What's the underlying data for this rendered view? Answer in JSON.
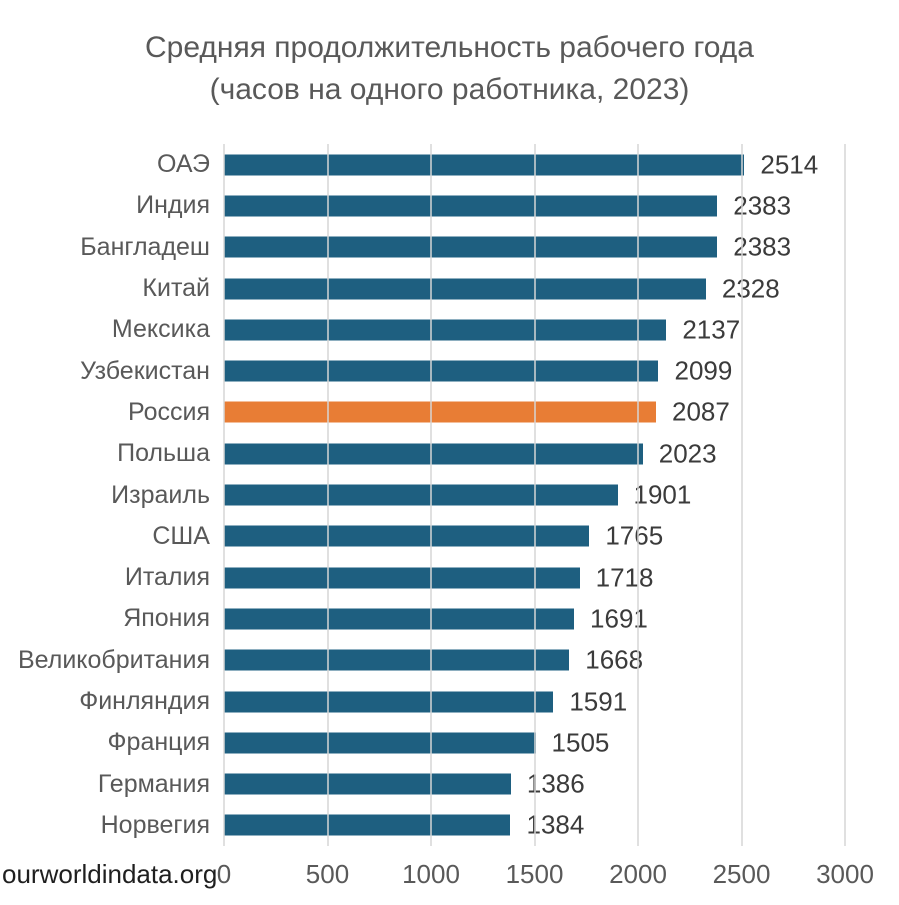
{
  "title": {
    "line1": "Средняя продолжительность рабочего года",
    "line2": "(часов на одного работника, 2023)"
  },
  "source_label": "ourworldindata.org",
  "colors": {
    "background": "#FFFFFF",
    "bar": "#1E5F80",
    "highlight_bar": "#E87D35",
    "gridline": "#D6D6D6",
    "title_text": "#595959",
    "category_text": "#595959",
    "value_text": "#3B3B3B",
    "tick_text": "#595959",
    "source_text": "#1F1F1F"
  },
  "chart_data": {
    "type": "bar",
    "orientation": "horizontal",
    "title": "Средняя продолжительность рабочего года (часов на одного работника, 2023)",
    "categories": [
      "ОАЭ",
      "Индия",
      "Бангладеш",
      "Китай",
      "Мексика",
      "Узбекистан",
      "Россия",
      "Польша",
      "Израиль",
      "США",
      "Италия",
      "Япония",
      "Великобритания",
      "Финляндия",
      "Франция",
      "Германия",
      "Норвегия"
    ],
    "values": [
      2514,
      2383,
      2383,
      2328,
      2137,
      2099,
      2087,
      2023,
      1901,
      1765,
      1718,
      1691,
      1668,
      1591,
      1505,
      1386,
      1384
    ],
    "highlight_category": "Россия",
    "value_labels": true,
    "xlim": [
      0,
      3000
    ],
    "xticks": [
      0,
      500,
      1000,
      1500,
      2000,
      2500,
      3000
    ],
    "grid": "vertical",
    "legend": "none"
  }
}
